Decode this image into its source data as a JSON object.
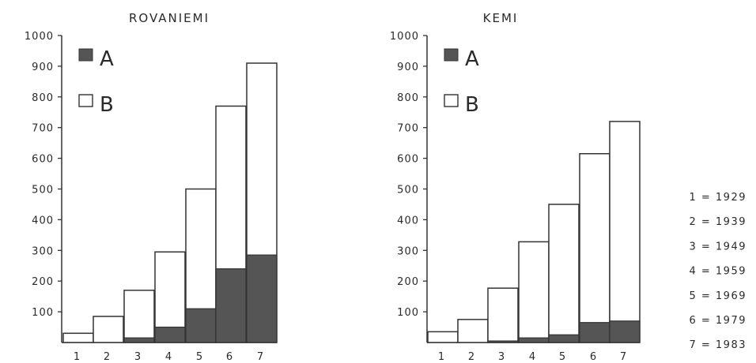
{
  "chart_data": [
    {
      "type": "bar",
      "stacked": true,
      "title": "ROVANIEMI",
      "categories": [
        "1",
        "2",
        "3",
        "4",
        "5",
        "6",
        "7"
      ],
      "series": [
        {
          "name": "A",
          "color": "#555555",
          "values": [
            0,
            0,
            15,
            50,
            110,
            240,
            285
          ]
        },
        {
          "name": "B",
          "color": "#ffffff",
          "values": [
            30,
            85,
            155,
            245,
            390,
            530,
            625
          ]
        }
      ],
      "ylim": [
        0,
        1000
      ],
      "yticks": [
        "100",
        "200",
        "300",
        "400",
        "500",
        "600",
        "700",
        "800",
        "900",
        "1000"
      ],
      "legend_position": "top-left"
    },
    {
      "type": "bar",
      "stacked": true,
      "title": "KEMI",
      "categories": [
        "1",
        "2",
        "3",
        "4",
        "5",
        "6",
        "7"
      ],
      "series": [
        {
          "name": "A",
          "color": "#555555",
          "values": [
            0,
            0,
            5,
            15,
            25,
            65,
            70
          ]
        },
        {
          "name": "B",
          "color": "#ffffff",
          "values": [
            35,
            75,
            172,
            313,
            425,
            550,
            650
          ]
        }
      ],
      "ylim": [
        0,
        1000
      ],
      "yticks": [
        "100",
        "200",
        "300",
        "400",
        "500",
        "600",
        "700",
        "800",
        "900",
        "1000"
      ],
      "legend_position": "top-left"
    }
  ],
  "year_key": [
    "1 = 1929",
    "2 = 1939",
    "3 = 1949",
    "4 = 1959",
    "5 = 1969",
    "6 = 1979",
    "7 = 1983"
  ]
}
